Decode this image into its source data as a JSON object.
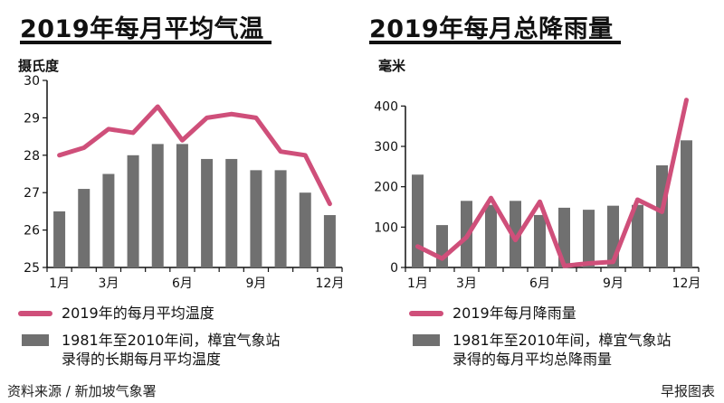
{
  "chart_data": [
    {
      "type": "bar",
      "title": "2019年每月平均气温",
      "ylabel": "摄氏度",
      "ylim": [
        25,
        30
      ],
      "yticks": [
        25,
        26,
        27,
        28,
        29,
        30
      ],
      "months": [
        1,
        2,
        3,
        4,
        5,
        6,
        7,
        8,
        9,
        10,
        11,
        12
      ],
      "xtick_labels": [
        {
          "month": 1,
          "label": "1月"
        },
        {
          "month": 3,
          "label": "3月"
        },
        {
          "month": 6,
          "label": "6月"
        },
        {
          "month": 9,
          "label": "9月"
        },
        {
          "month": 12,
          "label": "12月"
        }
      ],
      "series": [
        {
          "name": "2019年的每月平均温度",
          "kind": "line",
          "color": "#cf4f7a",
          "values": [
            28.0,
            28.2,
            28.7,
            28.6,
            29.3,
            28.4,
            29.0,
            29.1,
            29.0,
            28.1,
            28.0,
            26.7
          ]
        },
        {
          "name": "1981年至2010年间，樟宜气象站录得的长期每月平均温度",
          "kind": "bar",
          "color": "#707070",
          "values": [
            26.5,
            27.1,
            27.5,
            28.0,
            28.3,
            28.3,
            27.9,
            27.9,
            27.6,
            27.6,
            27.0,
            26.4
          ]
        }
      ],
      "legend": [
        {
          "kind": "line",
          "lines": [
            "2019年的每月平均温度"
          ]
        },
        {
          "kind": "bar",
          "lines": [
            "1981年至2010年间，樟宜气象站",
            "录得的长期每月平均温度"
          ]
        }
      ]
    },
    {
      "type": "bar",
      "title": "2019年每月总降雨量",
      "ylabel": "毫米",
      "ylim": [
        0,
        450
      ],
      "yticks": [
        0,
        100,
        200,
        300,
        400
      ],
      "months": [
        1,
        2,
        3,
        4,
        5,
        6,
        7,
        8,
        9,
        10,
        11,
        12
      ],
      "xtick_labels": [
        {
          "month": 1,
          "label": "1月"
        },
        {
          "month": 3,
          "label": "3月"
        },
        {
          "month": 6,
          "label": "6月"
        },
        {
          "month": 9,
          "label": "9月"
        },
        {
          "month": 12,
          "label": "12月"
        }
      ],
      "series": [
        {
          "name": "2019年每月降雨量",
          "kind": "line",
          "color": "#cf4f7a",
          "values": [
            52,
            22,
            75,
            172,
            68,
            163,
            4,
            10,
            14,
            168,
            138,
            415
          ]
        },
        {
          "name": "1981年至2010年间，樟宜气象站录得的每月平均总降雨量",
          "kind": "bar",
          "color": "#707070",
          "values": [
            230,
            105,
            165,
            155,
            165,
            130,
            148,
            143,
            153,
            155,
            253,
            315
          ]
        }
      ],
      "legend": [
        {
          "kind": "line",
          "lines": [
            "2019年每月降雨量"
          ]
        },
        {
          "kind": "bar",
          "lines": [
            "1981年至2010年间，樟宜气象站",
            "录得的每月平均总降雨量"
          ]
        }
      ]
    }
  ],
  "footer": {
    "source": "资料来源 / 新加坡气象署",
    "credit": "早报图表"
  }
}
